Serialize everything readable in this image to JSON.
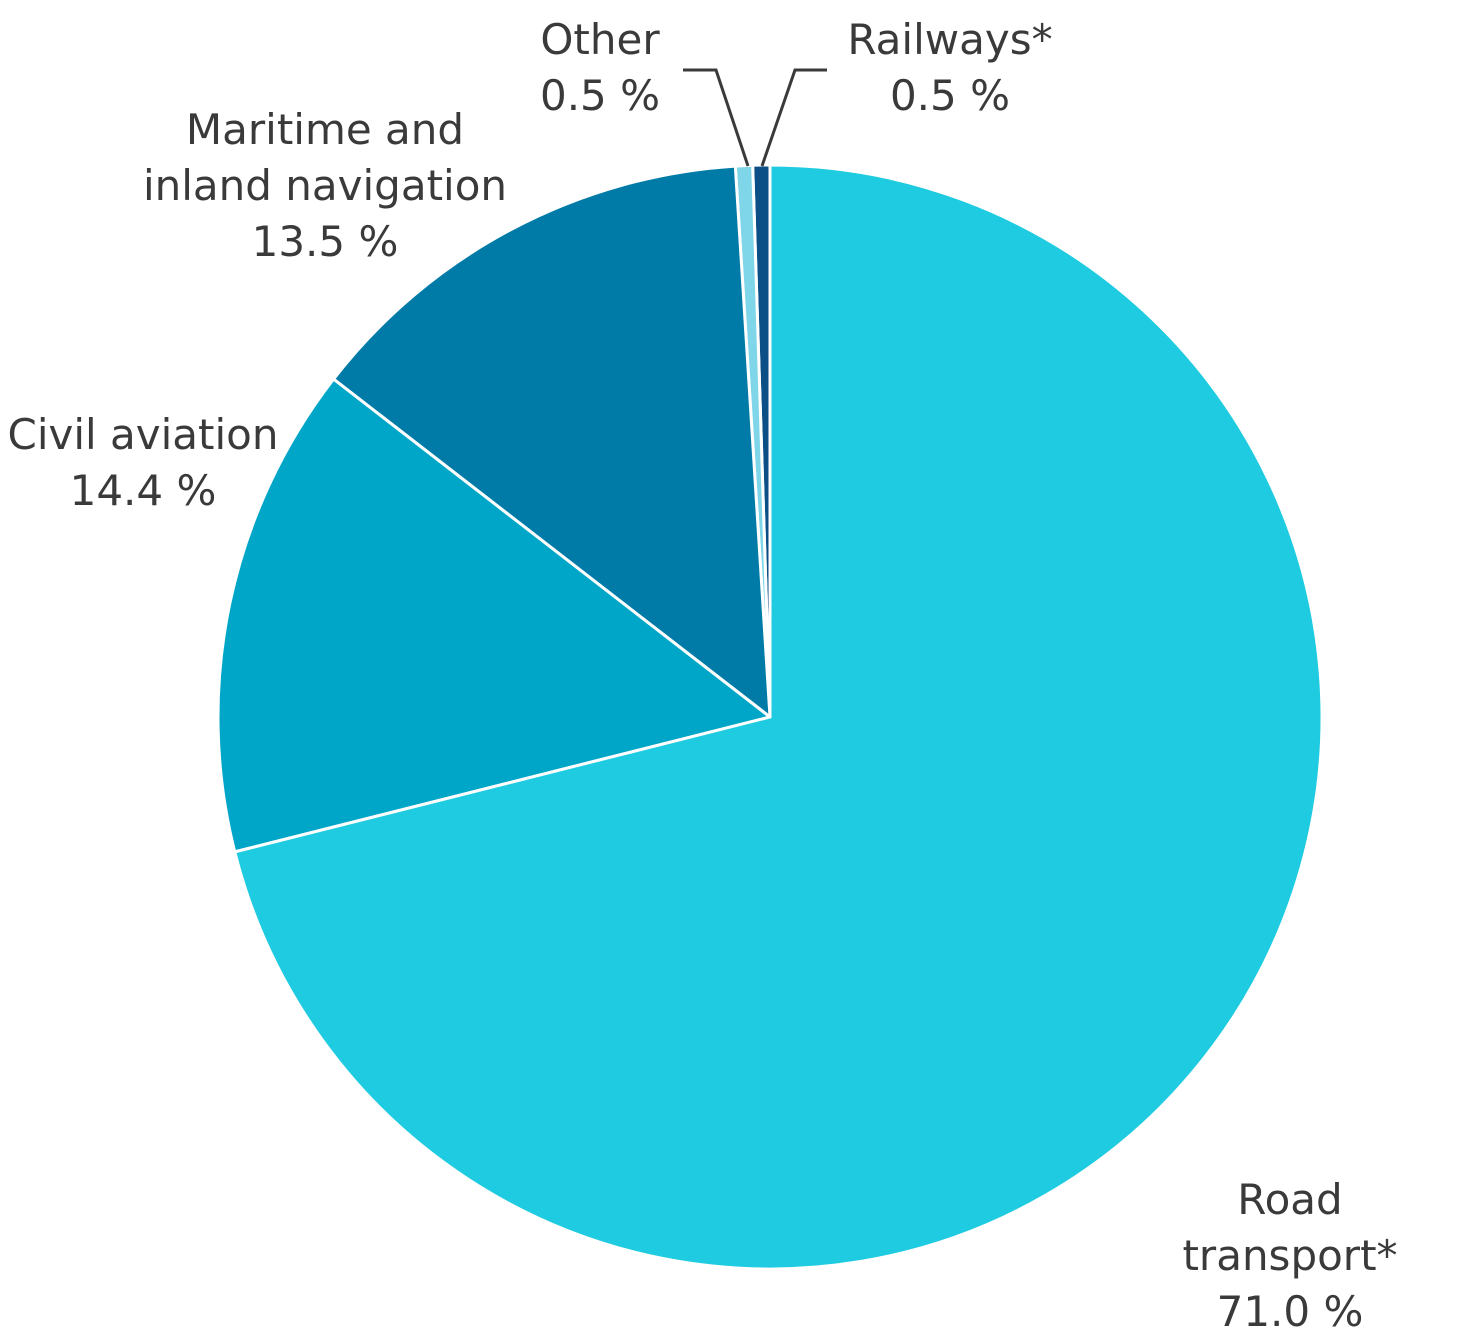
{
  "chart_data": {
    "type": "pie",
    "categories": [
      "Road transport*",
      "Civil aviation",
      "Maritime and\ninland navigation",
      "Other",
      "Railways*"
    ],
    "values": [
      71.0,
      14.4,
      13.5,
      0.5,
      0.5
    ],
    "value_labels": [
      "71.0 %",
      "14.4 %",
      "13.5 %",
      "0.5 %",
      "0.5 %"
    ],
    "colors": [
      "#1ecbe0",
      "#00a6c8",
      "#007ba7",
      "#7fd6e8",
      "#0b4f86"
    ]
  }
}
